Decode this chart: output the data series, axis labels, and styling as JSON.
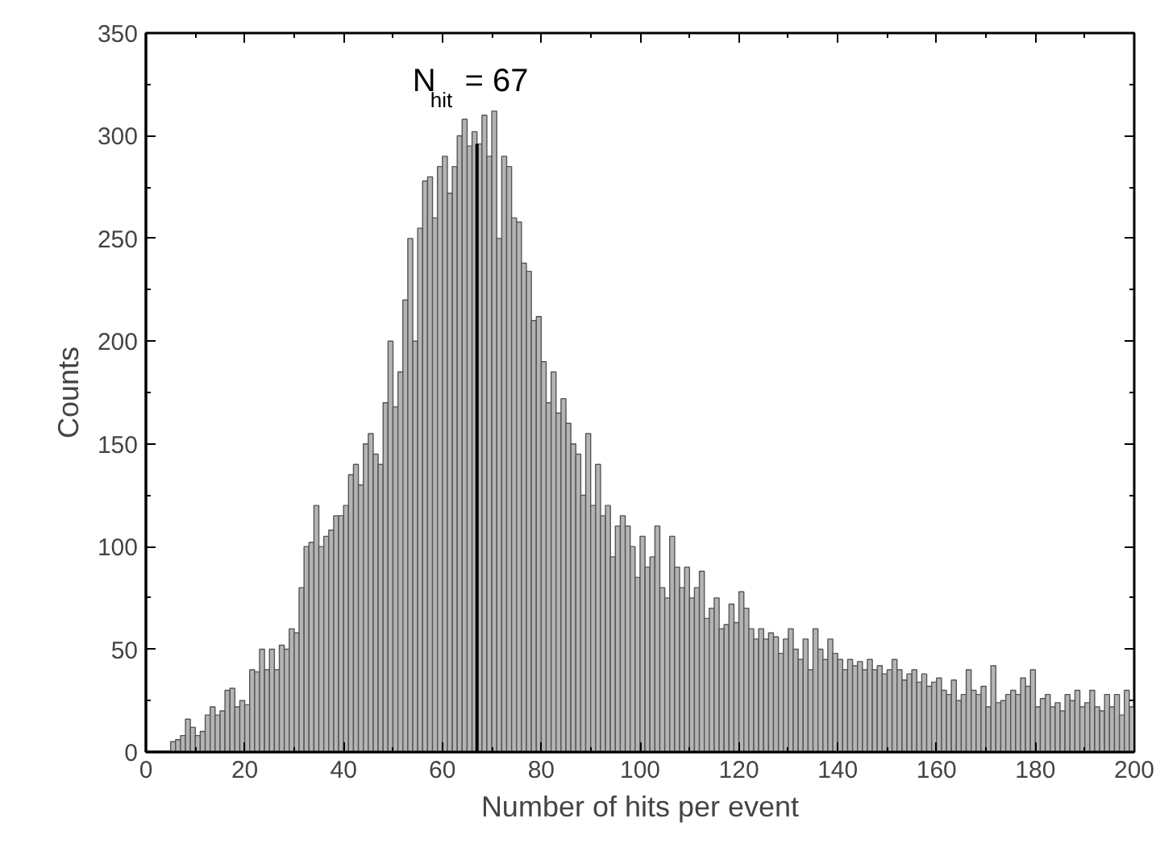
{
  "chart_data": {
    "type": "histogram",
    "xlabel": "Number of hits per event",
    "ylabel": "Counts",
    "bins": [
      5,
      6,
      7,
      8,
      9,
      10,
      11,
      12,
      13,
      14,
      15,
      16,
      17,
      18,
      19,
      20,
      21,
      22,
      23,
      24,
      25,
      26,
      27,
      28,
      29,
      30,
      31,
      32,
      33,
      34,
      35,
      36,
      37,
      38,
      39,
      40,
      41,
      42,
      43,
      44,
      45,
      46,
      47,
      48,
      49,
      50,
      51,
      52,
      53,
      54,
      55,
      56,
      57,
      58,
      59,
      60,
      61,
      62,
      63,
      64,
      65,
      66,
      67,
      68,
      69,
      70,
      71,
      72,
      73,
      74,
      75,
      76,
      77,
      78,
      79,
      80,
      81,
      82,
      83,
      84,
      85,
      86,
      87,
      88,
      89,
      90,
      91,
      92,
      93,
      94,
      95,
      96,
      97,
      98,
      99,
      100,
      101,
      102,
      103,
      104,
      105,
      106,
      107,
      108,
      109,
      110,
      111,
      112,
      113,
      114,
      115,
      116,
      117,
      118,
      119,
      120,
      121,
      122,
      123,
      124,
      125,
      126,
      127,
      128,
      129,
      130,
      131,
      132,
      133,
      134,
      135,
      136,
      137,
      138,
      139,
      140,
      141,
      142,
      143,
      144,
      145,
      146,
      147,
      148,
      149,
      150,
      151,
      152,
      153,
      154,
      155,
      156,
      157,
      158,
      159,
      160,
      161,
      162,
      163,
      164,
      165,
      166,
      167,
      168,
      169,
      170,
      171,
      172,
      173,
      174,
      175,
      176,
      177,
      178,
      179,
      180,
      181,
      182,
      183,
      184,
      185,
      186,
      187,
      188,
      189,
      190,
      191,
      192,
      193,
      194,
      195,
      196,
      197,
      198,
      199,
      200
    ],
    "values": [
      5,
      6,
      8,
      16,
      12,
      8,
      10,
      18,
      22,
      18,
      20,
      30,
      31,
      22,
      25,
      23,
      40,
      39,
      50,
      40,
      50,
      40,
      52,
      50,
      60,
      58,
      80,
      100,
      102,
      120,
      100,
      105,
      108,
      115,
      115,
      120,
      135,
      140,
      130,
      150,
      155,
      145,
      140,
      170,
      200,
      168,
      185,
      220,
      250,
      200,
      255,
      278,
      280,
      260,
      285,
      290,
      272,
      285,
      300,
      308,
      295,
      302,
      296,
      310,
      290,
      312,
      250,
      290,
      285,
      260,
      258,
      238,
      234,
      210,
      212,
      190,
      170,
      185,
      165,
      172,
      160,
      150,
      145,
      125,
      155,
      120,
      140,
      115,
      120,
      95,
      110,
      115,
      110,
      100,
      85,
      105,
      90,
      95,
      110,
      80,
      75,
      105,
      90,
      80,
      90,
      75,
      80,
      88,
      65,
      70,
      75,
      60,
      62,
      72,
      63,
      78,
      70,
      60,
      55,
      60,
      55,
      58,
      56,
      48,
      55,
      60,
      50,
      45,
      55,
      40,
      60,
      50,
      45,
      55,
      48,
      45,
      40,
      45,
      42,
      44,
      40,
      45,
      40,
      42,
      38,
      40,
      45,
      40,
      35,
      38,
      40,
      34,
      38,
      32,
      34,
      36,
      30,
      28,
      35,
      25,
      28,
      40,
      30,
      28,
      32,
      22,
      42,
      24,
      25,
      28,
      30,
      28,
      36,
      32,
      40,
      22,
      26,
      28,
      22,
      24,
      20,
      28,
      25,
      30,
      22,
      24,
      30,
      22,
      20,
      28,
      22,
      28,
      18,
      30,
      22
    ],
    "color": "#b4b4b4",
    "xlim": [
      0,
      200
    ],
    "xticks": [
      0,
      20,
      40,
      60,
      80,
      100,
      120,
      140,
      160,
      180,
      200
    ],
    "ylim": [
      0,
      350
    ],
    "yticks": [
      0,
      50,
      100,
      150,
      200,
      250,
      300,
      350
    ],
    "grid": false,
    "ref_lines": [
      {
        "axis": "x",
        "value": 67,
        "label": "N$_{hit}$ = 67",
        "color": "#000000"
      }
    ]
  }
}
